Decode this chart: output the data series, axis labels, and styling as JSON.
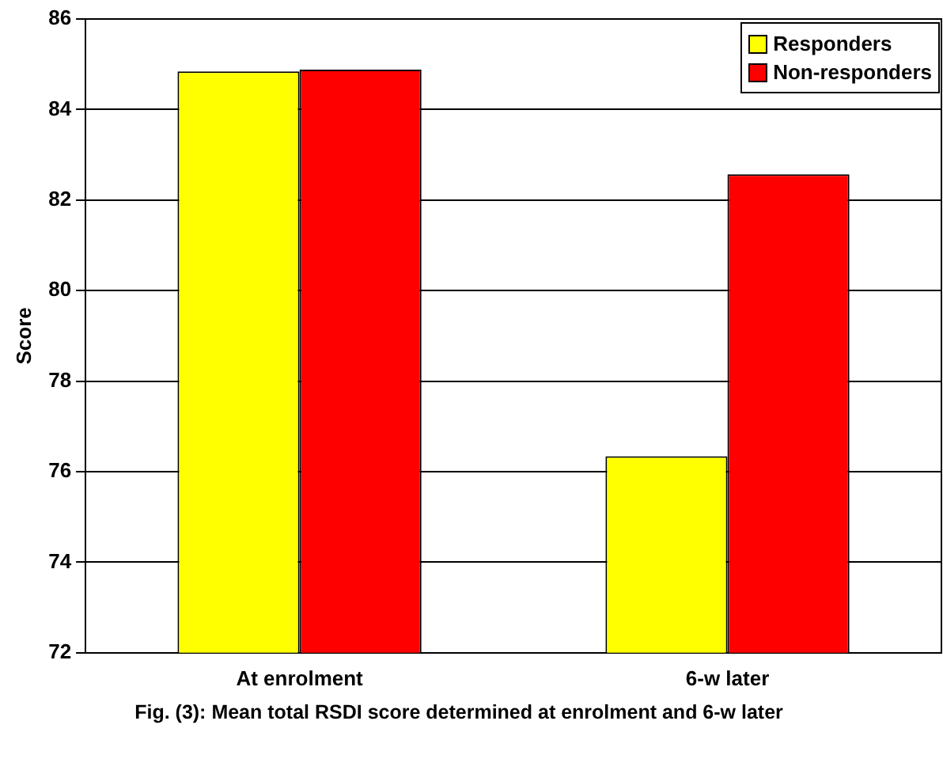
{
  "chart_data": {
    "type": "bar",
    "ylabel": "Score",
    "categories": [
      "At enrolment",
      "6-w later"
    ],
    "series": [
      {
        "name": "Responders",
        "color": "#ffff00",
        "values": [
          84.84,
          76.34
        ]
      },
      {
        "name": "Non-responders",
        "color": "#ff0000",
        "values": [
          84.88,
          82.57
        ]
      }
    ],
    "ylim": [
      72,
      86
    ],
    "yticks": [
      72,
      74,
      76,
      78,
      80,
      82,
      84,
      86
    ],
    "grid": "y",
    "legend": "top right",
    "annotations": [
      "Fig. (3): Mean total RSDI score determined at enrolment and 6-w later"
    ]
  }
}
